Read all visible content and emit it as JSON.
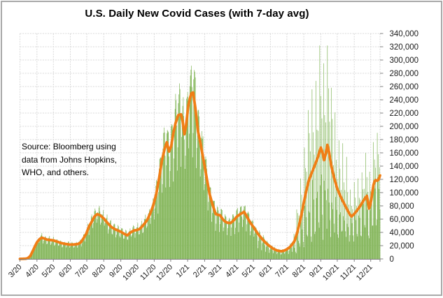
{
  "title": "U.S. Daily New Covid Cases (with 7-day avg)",
  "source_note": {
    "line1": "Source:  Bloomberg using",
    "line2": "data from Johns Hopkins,",
    "line3": "WHO, and others."
  },
  "colors": {
    "bars": "#74AD45",
    "line": "#F07E16",
    "gridline": "#D9D9D9",
    "axis": "#808080",
    "text": "#1a1a1a",
    "border": "#A9A9A9",
    "background": "#FFFFFF"
  },
  "chart_data": {
    "type": "bar",
    "title": "U.S. Daily New Covid Cases (with 7-day avg)",
    "xlabel": "",
    "ylabel": "",
    "ylim": [
      0,
      340000
    ],
    "y_tick_step": 20000,
    "grid": "horizontal and vertical, light gray dashed",
    "legend": "none",
    "x_tick_labels": [
      "3/20",
      "4/20",
      "5/20",
      "6/20",
      "7/20",
      "8/20",
      "9/20",
      "10/20",
      "11/20",
      "12/20",
      "1/21",
      "2/21",
      "3/21",
      "4/21",
      "5/21",
      "6/21",
      "7/21",
      "8/21",
      "9/21",
      "10/21",
      "11/21",
      "12/21"
    ],
    "month_start_day_index": [
      0,
      31,
      61,
      92,
      122,
      153,
      184,
      214,
      245,
      275,
      306,
      337,
      365,
      396,
      426,
      457,
      487,
      518,
      549,
      579,
      610,
      640
    ],
    "days_total": 658,
    "day0_weekday_index": 0,
    "series": [
      {
        "name": "Daily new cases",
        "type": "bar",
        "note": "daily bars derived from the 7-day average times weekday reporting factors",
        "weekday_factor_eras": [
          {
            "from_day": 0,
            "to_day": 245,
            "weekday_factors": [
              0.78,
              0.85,
              1.0,
              1.08,
              1.13,
              1.16,
              1.02
            ],
            "noise": 0.07
          },
          {
            "from_day": 245,
            "to_day": 432,
            "weekday_factors": [
              0.66,
              0.8,
              1.06,
              1.14,
              1.17,
              1.15,
              0.98
            ],
            "noise": 0.06
          },
          {
            "from_day": 432,
            "to_day": 500,
            "weekday_factors": [
              0.52,
              0.72,
              1.06,
              1.18,
              1.14,
              1.1,
              0.82
            ],
            "noise": 0.1
          },
          {
            "from_day": 500,
            "to_day": 602,
            "weekday_factors": [
              0.33,
              1.9,
              0.75,
              1.45,
              0.62,
              1.18,
              0.4
            ],
            "noise": 0.15
          },
          {
            "from_day": 602,
            "to_day": 658,
            "weekday_factors": [
              0.45,
              1.62,
              0.95,
              1.28,
              0.88,
              1.12,
              0.52
            ],
            "noise": 0.1
          }
        ],
        "clamp_max": 322000
      },
      {
        "name": "7-day average",
        "type": "line",
        "anchors_day_value": [
          [
            0,
            0
          ],
          [
            10,
            300
          ],
          [
            14,
            900
          ],
          [
            19,
            4500
          ],
          [
            24,
            13000
          ],
          [
            28,
            20000
          ],
          [
            31,
            25000
          ],
          [
            36,
            30000
          ],
          [
            40,
            32000
          ],
          [
            45,
            30500
          ],
          [
            50,
            29000
          ],
          [
            56,
            28500
          ],
          [
            61,
            28000
          ],
          [
            68,
            26000
          ],
          [
            75,
            24000
          ],
          [
            82,
            22800
          ],
          [
            92,
            21500
          ],
          [
            99,
            21800
          ],
          [
            106,
            22500
          ],
          [
            111,
            25000
          ],
          [
            116,
            31000
          ],
          [
            121,
            38000
          ],
          [
            126,
            49000
          ],
          [
            131,
            56000
          ],
          [
            136,
            64000
          ],
          [
            141,
            67500
          ],
          [
            146,
            66000
          ],
          [
            153,
            61000
          ],
          [
            160,
            54000
          ],
          [
            167,
            48000
          ],
          [
            174,
            44500
          ],
          [
            180,
            42500
          ],
          [
            184,
            41000
          ],
          [
            190,
            38000
          ],
          [
            196,
            35500
          ],
          [
            201,
            39500
          ],
          [
            208,
            43000
          ],
          [
            213,
            43500
          ],
          [
            218,
            45000
          ],
          [
            223,
            49000
          ],
          [
            228,
            54000
          ],
          [
            233,
            60000
          ],
          [
            238,
            69000
          ],
          [
            243,
            80000
          ],
          [
            249,
            99000
          ],
          [
            254,
            122000
          ],
          [
            259,
            148000
          ],
          [
            264,
            166000
          ],
          [
            268,
            176000
          ],
          [
            272,
            162000
          ],
          [
            276,
            170000
          ],
          [
            280,
            190000
          ],
          [
            284,
            205000
          ],
          [
            289,
            217000
          ],
          [
            294,
            218000
          ],
          [
            297,
            207000
          ],
          [
            300,
            188000
          ],
          [
            303,
            200000
          ],
          [
            307,
            230000
          ],
          [
            310,
            242000
          ],
          [
            313,
            250000
          ],
          [
            316,
            251000
          ],
          [
            320,
            228000
          ],
          [
            325,
            192000
          ],
          [
            330,
            172000
          ],
          [
            333,
            158000
          ],
          [
            337,
            140000
          ],
          [
            341,
            121000
          ],
          [
            346,
            98000
          ],
          [
            351,
            83000
          ],
          [
            357,
            68000
          ],
          [
            361,
            66500
          ],
          [
            365,
            66000
          ],
          [
            370,
            60000
          ],
          [
            374,
            56500
          ],
          [
            379,
            54500
          ],
          [
            384,
            54000
          ],
          [
            390,
            58000
          ],
          [
            396,
            64000
          ],
          [
            402,
            67500
          ],
          [
            409,
            71000
          ],
          [
            414,
            64000
          ],
          [
            420,
            55000
          ],
          [
            427,
            47000
          ],
          [
            435,
            37000
          ],
          [
            442,
            30000
          ],
          [
            450,
            23000
          ],
          [
            457,
            18500
          ],
          [
            463,
            15000
          ],
          [
            470,
            12500
          ],
          [
            477,
            11500
          ],
          [
            482,
            12500
          ],
          [
            487,
            14500
          ],
          [
            492,
            17500
          ],
          [
            496,
            21000
          ],
          [
            501,
            27000
          ],
          [
            506,
            40000
          ],
          [
            512,
            60000
          ],
          [
            518,
            85000
          ],
          [
            522,
            101000
          ],
          [
            527,
            118000
          ],
          [
            532,
            129000
          ],
          [
            537,
            139000
          ],
          [
            543,
            152000
          ],
          [
            549,
            168000
          ],
          [
            552,
            161000
          ],
          [
            555,
            149000
          ],
          [
            558,
            159000
          ],
          [
            561,
            172000
          ],
          [
            564,
            161000
          ],
          [
            568,
            141000
          ],
          [
            573,
            123000
          ],
          [
            579,
            106000
          ],
          [
            583,
            98000
          ],
          [
            588,
            89000
          ],
          [
            593,
            81000
          ],
          [
            598,
            73000
          ],
          [
            602,
            67000
          ],
          [
            605,
            64000
          ],
          [
            609,
            67000
          ],
          [
            614,
            72000
          ],
          [
            618,
            76500
          ],
          [
            621,
            80000
          ],
          [
            624,
            84000
          ],
          [
            627,
            88000
          ],
          [
            630,
            92000
          ],
          [
            633,
            95000
          ],
          [
            635,
            86000
          ],
          [
            637,
            76000
          ],
          [
            639,
            81000
          ],
          [
            641,
            89000
          ],
          [
            643,
            100000
          ],
          [
            645,
            111000
          ],
          [
            647,
            117000
          ],
          [
            649,
            119000
          ],
          [
            651,
            118000
          ],
          [
            653,
            118500
          ],
          [
            655,
            121000
          ],
          [
            657,
            126000
          ]
        ]
      }
    ]
  }
}
